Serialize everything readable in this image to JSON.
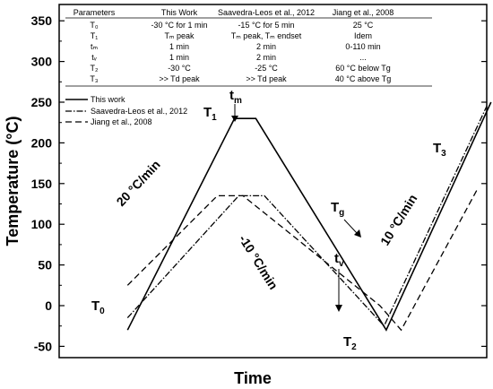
{
  "chart_data": {
    "type": "line",
    "xlabel": "Time",
    "ylabel": "Temperature (°C)",
    "ylim": [
      -60,
      375
    ],
    "xlim": [
      0,
      100
    ],
    "yticks": [
      -50,
      0,
      50,
      100,
      150,
      200,
      250,
      300,
      350
    ],
    "grid": false,
    "legend_position": "left",
    "series": [
      {
        "name": "This work",
        "style": "solid",
        "x": [
          16,
          41,
          46,
          76.5,
          101
        ],
        "y": [
          -30,
          230,
          230,
          -30,
          250
        ]
      },
      {
        "name": "Saavedra-Leos et al., 2012",
        "style": "dashdot",
        "x": [
          16,
          42,
          48,
          76,
          100
        ],
        "y": [
          -15,
          135,
          135,
          -25,
          245
        ]
      },
      {
        "name": "Jiang et al., 2008",
        "style": "dash",
        "x": [
          16,
          37,
          43,
          75,
          80,
          98
        ],
        "y": [
          25,
          135,
          135,
          0,
          -30,
          145
        ]
      }
    ],
    "annotations": {
      "t0": "T",
      "t0_sub": "0",
      "t1": "T",
      "t1_sub": "1",
      "tm": "t",
      "tm_sub": "m",
      "tv": "t",
      "tv_sub": "v",
      "t2": "T",
      "t2_sub": "2",
      "t3": "T",
      "t3_sub": "3",
      "tg": "T",
      "tg_sub": "g",
      "rate_heat": "20 °C/min",
      "rate_cool": "-10 °C/min",
      "rate_heat2": "10 °C/min"
    },
    "table": {
      "headers": [
        "Parameters",
        "This Work",
        "Saavedra-Leos et al., 2012",
        "Jiang et al., 2008"
      ],
      "rows": [
        [
          "T₀",
          "-30 °C for 1 min",
          "-15 °C for 5 min",
          "25 °C"
        ],
        [
          "T₁",
          "Tₘ peak",
          "Tₘ peak, Tₘ endset",
          "Idem"
        ],
        [
          "tₘ",
          "1 min",
          "2 min",
          "0-110 min"
        ],
        [
          "tᵥ",
          "1 min",
          "2 min",
          "..."
        ],
        [
          "T₂",
          "-30 °C",
          "-25 °C",
          "60 °C below Tg"
        ],
        [
          "T₃",
          ">> Td peak",
          ">> Td peak",
          "40 °C above Tg"
        ]
      ]
    }
  }
}
